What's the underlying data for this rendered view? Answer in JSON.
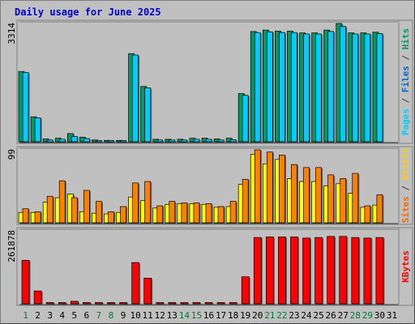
{
  "title": "Daily usage for June 2025",
  "chart_data": {
    "type": "bar",
    "title": "Daily usage for June 2025",
    "categories": [
      "1",
      "2",
      "3",
      "4",
      "5",
      "6",
      "7",
      "8",
      "9",
      "10",
      "11",
      "12",
      "13",
      "14",
      "15",
      "16",
      "17",
      "18",
      "19",
      "20",
      "21",
      "22",
      "23",
      "24",
      "25",
      "26",
      "27",
      "28",
      "29",
      "30",
      "31"
    ],
    "weekend_days": [
      "1",
      "7",
      "8",
      "14",
      "15",
      "21",
      "22",
      "28",
      "29"
    ],
    "panels": [
      {
        "id": "hits-files-pages",
        "ymax_label": "3314",
        "ylim": [
          0,
          3314
        ],
        "right_label": [
          {
            "text": "Pages",
            "color": "#00ccff"
          },
          {
            "text": " / ",
            "color": "#404040"
          },
          {
            "text": "Files",
            "color": "#0066cc"
          },
          {
            "text": " / ",
            "color": "#404040"
          },
          {
            "text": "Hits",
            "color": "#009966"
          }
        ],
        "series": [
          {
            "name": "Hits",
            "color": "#009966",
            "values": [
              1970,
              700,
              80,
              100,
              230,
              130,
              50,
              40,
              40,
              2470,
              1550,
              70,
              70,
              70,
              100,
              100,
              80,
              100,
              1350,
              3090,
              3130,
              3100,
              3100,
              3050,
              3050,
              3130,
              3314,
              3050,
              3050,
              3070,
              0
            ]
          },
          {
            "name": "Pages",
            "color": "#00ccff",
            "values": [
              1940,
              670,
              50,
              70,
              150,
              90,
              30,
              30,
              30,
              2430,
              1510,
              50,
              50,
              50,
              70,
              70,
              50,
              60,
              1300,
              3060,
              3080,
              3060,
              3060,
              3020,
              3020,
              3090,
              3230,
              3020,
              3020,
              3030,
              0
            ]
          }
        ]
      },
      {
        "id": "visits-sites",
        "ymax_label": "99",
        "ylim": [
          0,
          99
        ],
        "right_label": [
          {
            "text": "Sites",
            "color": "#ff6600"
          },
          {
            "text": " / ",
            "color": "#404040"
          },
          {
            "text": "Visits",
            "color": "#ffcc00"
          }
        ],
        "series": [
          {
            "name": "Visits",
            "color": "#ffff00",
            "values": [
              14,
              14,
              28,
              34,
              39,
              15,
              13,
              12,
              14,
              35,
              30,
              20,
              25,
              26,
              26,
              25,
              21,
              22,
              52,
              93,
              80,
              86,
              60,
              56,
              56,
              50,
              53,
              40,
              21,
              24,
              0
            ]
          },
          {
            "name": "Sites",
            "color": "#ff8000",
            "values": [
              19,
              15,
              36,
              57,
              34,
              44,
              29,
              15,
              22,
              54,
              56,
              23,
              29,
              27,
              27,
              26,
              22,
              29,
              59,
              99,
              96,
              92,
              79,
              75,
              75,
              65,
              60,
              67,
              23,
              38,
              0
            ]
          }
        ]
      },
      {
        "id": "kbytes",
        "ymax_label": "261878",
        "ylim": [
          0,
          261878
        ],
        "right_label": [
          {
            "text": "KBytes",
            "color": "#ff0000"
          }
        ],
        "series": [
          {
            "name": "KBytes",
            "color": "#ff0000",
            "values": [
              156000,
              46000,
              2000,
              2000,
              9000,
              2000,
              2000,
              2000,
              2000,
              148000,
              92000,
              2000,
              2000,
              2000,
              2000,
              2000,
              2000,
              2000,
              97000,
              238000,
              240000,
              240000,
              240000,
              236000,
              238000,
              242000,
              242000,
              238000,
              236000,
              238000,
              0
            ]
          }
        ]
      }
    ]
  }
}
